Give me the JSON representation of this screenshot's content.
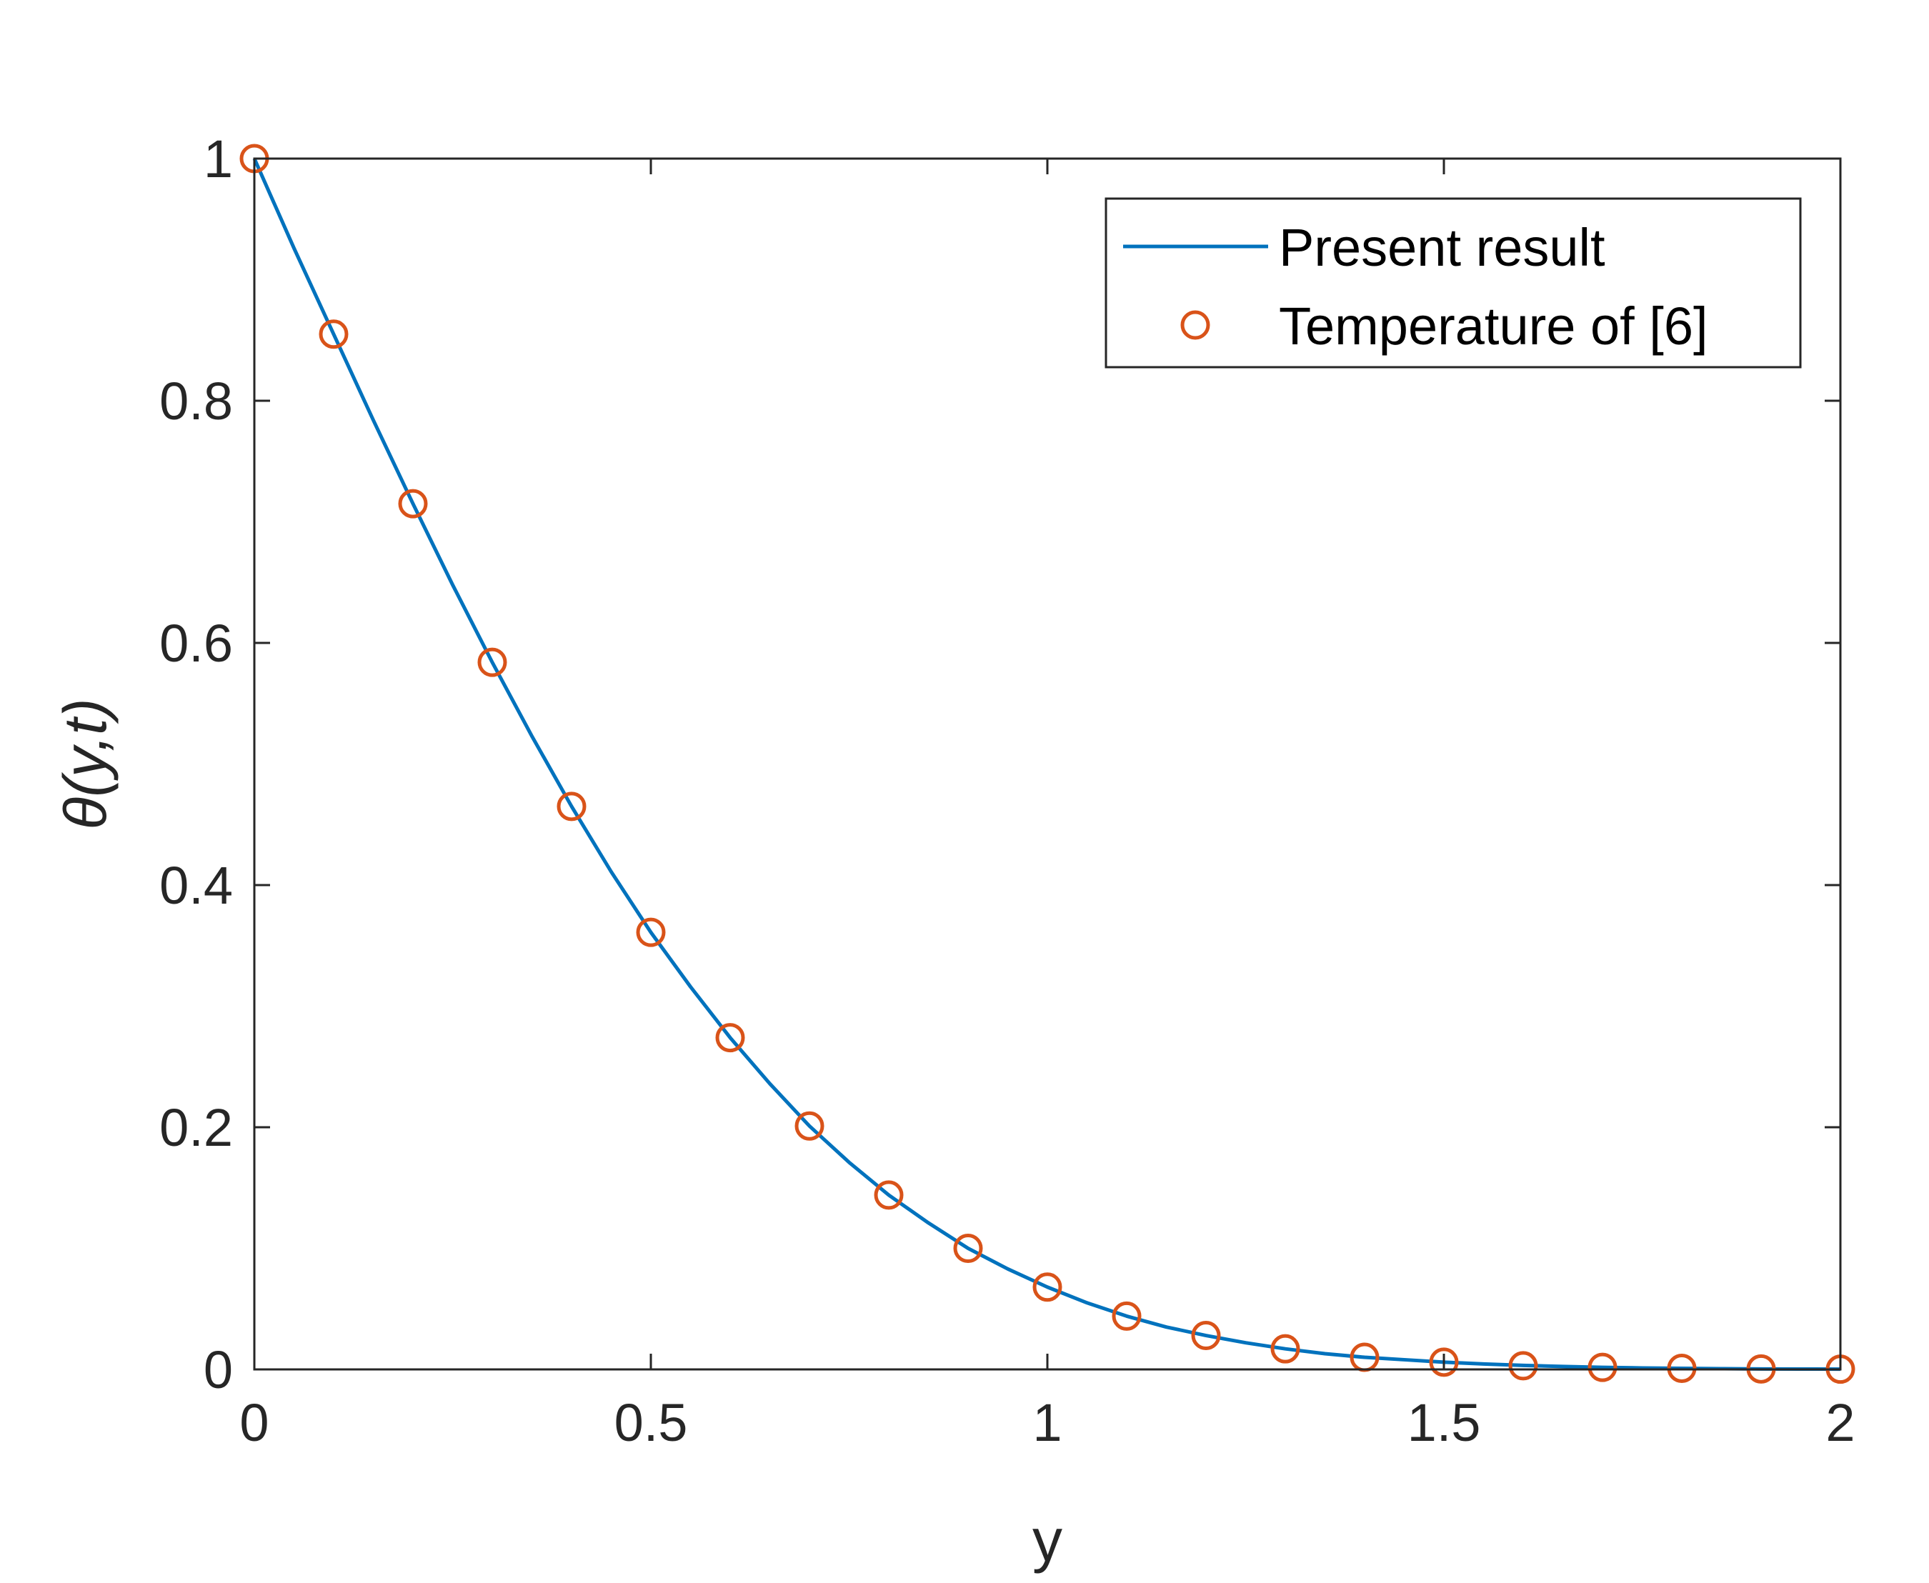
{
  "chart_data": {
    "type": "line",
    "xlabel": "y",
    "ylabel": "θ(y,t)",
    "xlim": [
      0,
      2
    ],
    "ylim": [
      0,
      1
    ],
    "xticks": [
      0,
      0.5,
      1,
      1.5,
      2
    ],
    "yticks": [
      0,
      0.2,
      0.4,
      0.6,
      0.8,
      1
    ],
    "xtick_labels": [
      "0",
      "0.5",
      "1",
      "1.5",
      "2"
    ],
    "ytick_labels": [
      "0",
      "0.2",
      "0.4",
      "0.6",
      "0.8",
      "1"
    ],
    "grid": false,
    "legend_position": "top-right",
    "series": [
      {
        "name": "Present result",
        "style": "line",
        "color": "#0072BD",
        "x": [
          0,
          0.05,
          0.1,
          0.15,
          0.2,
          0.25,
          0.3,
          0.35,
          0.4,
          0.45,
          0.5,
          0.55,
          0.6,
          0.65,
          0.7,
          0.75,
          0.8,
          0.85,
          0.9,
          0.95,
          1.0,
          1.05,
          1.1,
          1.15,
          1.2,
          1.25,
          1.3,
          1.35,
          1.4,
          1.45,
          1.5,
          1.55,
          1.6,
          1.65,
          1.7,
          1.75,
          1.8,
          1.85,
          1.9,
          1.95,
          2.0
        ],
        "y": [
          1.0,
          0.926,
          0.855,
          0.784,
          0.715,
          0.648,
          0.584,
          0.523,
          0.465,
          0.411,
          0.361,
          0.316,
          0.274,
          0.236,
          0.201,
          0.171,
          0.144,
          0.121,
          0.1,
          0.083,
          0.068,
          0.055,
          0.044,
          0.035,
          0.028,
          0.022,
          0.017,
          0.013,
          0.01,
          0.008,
          0.006,
          0.0045,
          0.0033,
          0.0024,
          0.0017,
          0.0012,
          0.0009,
          0.0006,
          0.0004,
          0.0003,
          0.0002
        ]
      },
      {
        "name": "Temperature of [6]",
        "style": "marker",
        "marker": "circle",
        "color": "#D95319",
        "x": [
          0,
          0.1,
          0.2,
          0.3,
          0.4,
          0.5,
          0.6,
          0.7,
          0.8,
          0.9,
          1.0,
          1.1,
          1.2,
          1.3,
          1.4,
          1.5,
          1.6,
          1.7,
          1.8,
          1.9,
          2.0
        ],
        "y": [
          1.0,
          0.855,
          0.715,
          0.584,
          0.465,
          0.361,
          0.274,
          0.201,
          0.144,
          0.1,
          0.068,
          0.044,
          0.028,
          0.017,
          0.01,
          0.006,
          0.003,
          0.0017,
          0.0009,
          0.0004,
          0.0002
        ]
      }
    ]
  }
}
